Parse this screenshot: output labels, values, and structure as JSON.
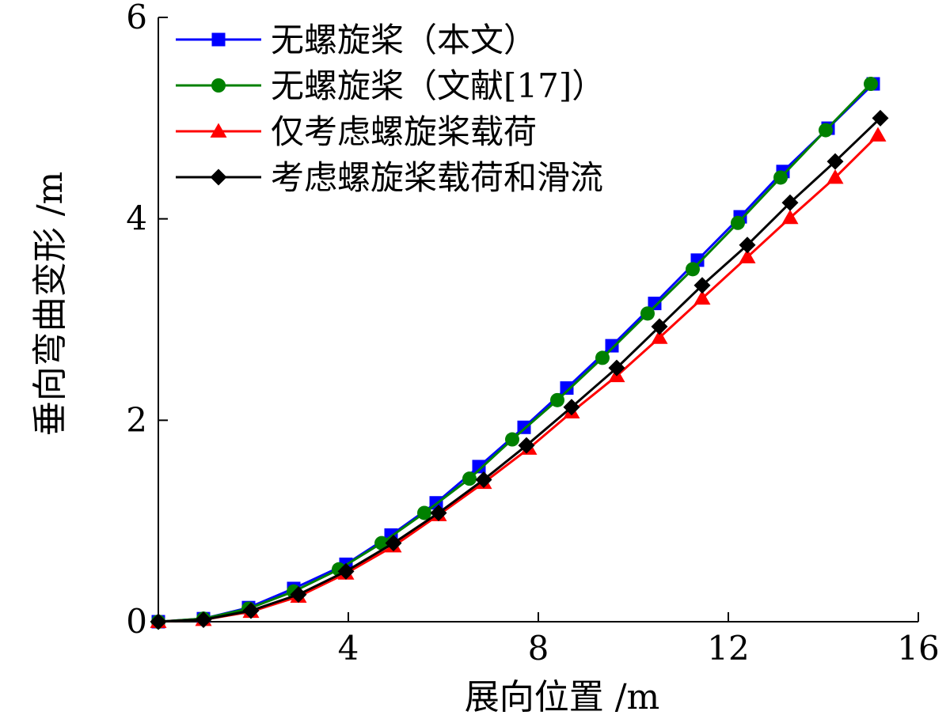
{
  "chart_data": {
    "type": "line",
    "title": "",
    "xlabel": "展向位置 /m",
    "ylabel": "垂向弯曲变形 /m",
    "xlim": [
      0,
      16
    ],
    "ylim": [
      0,
      6
    ],
    "xticks": [
      4,
      8,
      12,
      16
    ],
    "yticks": [
      0,
      2,
      4,
      6
    ],
    "grid": false,
    "legend_position": "top-left",
    "series": [
      {
        "name": "无螺旋桨（本文）",
        "color": "#0000ff",
        "marker": "square",
        "x": [
          0,
          0.95,
          1.9,
          2.85,
          3.95,
          4.9,
          5.85,
          6.75,
          7.7,
          8.6,
          9.55,
          10.45,
          11.35,
          12.25,
          13.15,
          14.1,
          15.05
        ],
        "y": [
          0,
          0.03,
          0.14,
          0.33,
          0.57,
          0.86,
          1.18,
          1.54,
          1.93,
          2.32,
          2.74,
          3.16,
          3.59,
          4.02,
          4.47,
          4.9,
          5.34
        ]
      },
      {
        "name": "无螺旋桨（文献[17]）",
        "color": "#008000",
        "marker": "circle",
        "x": [
          0,
          0.95,
          1.9,
          2.85,
          3.8,
          4.7,
          5.6,
          6.55,
          7.45,
          8.4,
          9.35,
          10.3,
          11.25,
          12.2,
          13.1,
          14.05,
          15.0
        ],
        "y": [
          0,
          0.03,
          0.13,
          0.3,
          0.52,
          0.78,
          1.08,
          1.42,
          1.81,
          2.2,
          2.62,
          3.06,
          3.5,
          3.96,
          4.41,
          4.88,
          5.34
        ]
      },
      {
        "name": "仅考虑螺旋桨载荷",
        "color": "#ff0000",
        "marker": "triangle",
        "x": [
          0,
          0.95,
          1.95,
          2.95,
          3.95,
          4.95,
          5.9,
          6.85,
          7.8,
          8.7,
          9.65,
          10.55,
          11.45,
          12.4,
          13.3,
          14.25,
          15.15
        ],
        "y": [
          0,
          0.02,
          0.1,
          0.25,
          0.48,
          0.75,
          1.06,
          1.38,
          1.72,
          2.08,
          2.44,
          2.82,
          3.21,
          3.62,
          4.01,
          4.41,
          4.83
        ]
      },
      {
        "name": "考虑螺旋桨载荷和滑流",
        "color": "#000000",
        "marker": "diamond",
        "x": [
          0,
          0.95,
          1.95,
          2.95,
          3.95,
          4.95,
          5.9,
          6.85,
          7.75,
          8.7,
          9.65,
          10.55,
          11.45,
          12.4,
          13.3,
          14.25,
          15.2
        ],
        "y": [
          0,
          0.02,
          0.11,
          0.27,
          0.5,
          0.78,
          1.08,
          1.41,
          1.75,
          2.13,
          2.52,
          2.93,
          3.34,
          3.74,
          4.16,
          4.57,
          5.0
        ]
      }
    ]
  }
}
